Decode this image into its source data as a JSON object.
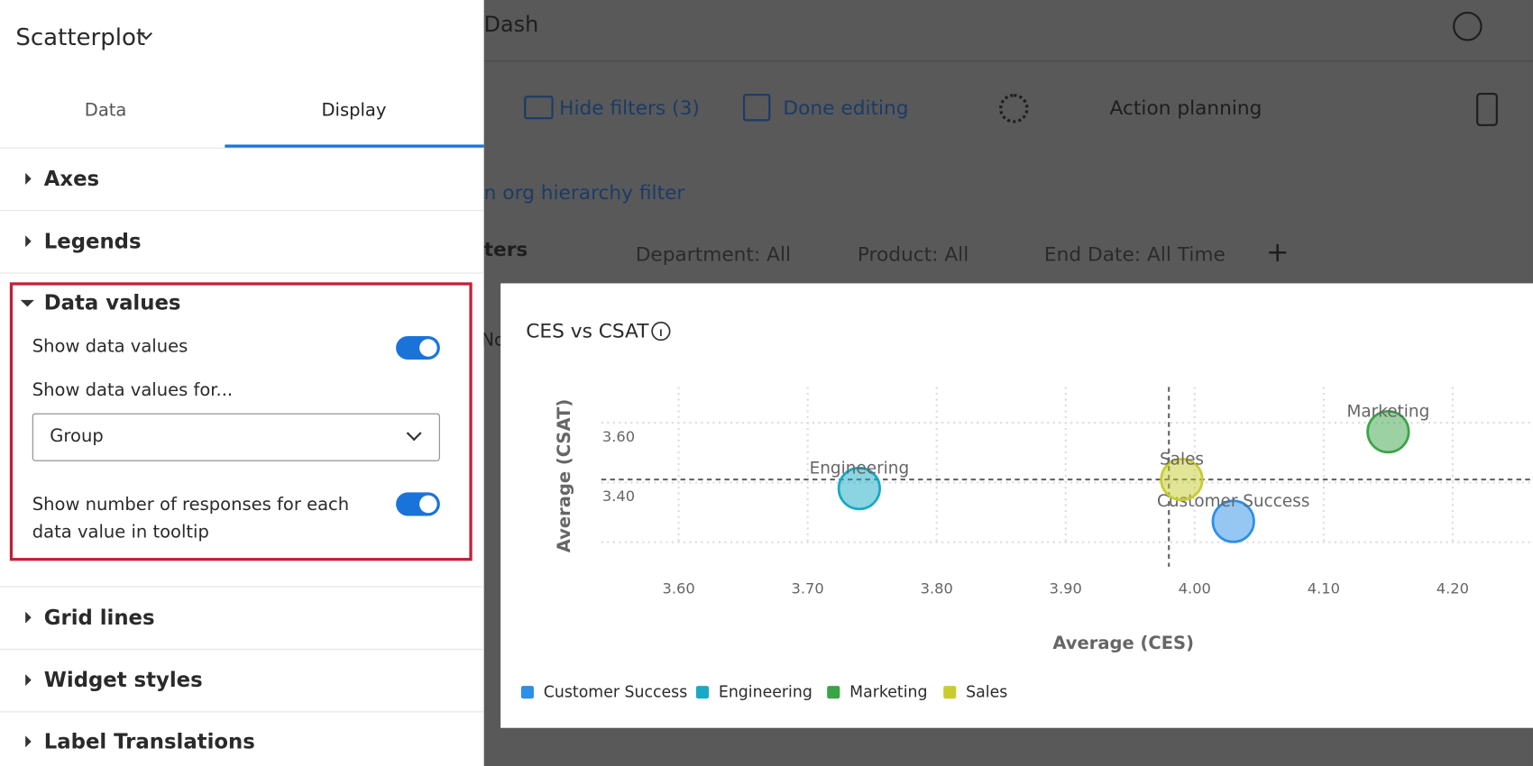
{
  "panel": {
    "title": "Scatterplot",
    "tabs": [
      "Data",
      "Display"
    ],
    "sections": [
      "Axes",
      "Legends",
      "Data values",
      "Grid lines",
      "Widget styles",
      "Label Translations"
    ],
    "data_values": {
      "show_data_values": "Show data values",
      "show_for_label": "Show data values for...",
      "show_for_value": "Group",
      "show_responses": "Show number of responses for each data value in tooltip"
    }
  },
  "dashboard": {
    "title": "Dash",
    "toolbar": [
      "Hide filters (3)",
      "Done editing",
      "Action planning"
    ],
    "org_filter": "n org hierarchy filter",
    "filters_label": "ters",
    "tab_fragment": "No",
    "filters": [
      "Department: All",
      "Product: All",
      "End Date: All Time"
    ]
  },
  "chart_data": {
    "type": "scatter",
    "title": "CES vs CSAT",
    "x_label": "Average (CES)",
    "y_label": "Average (CSAT)",
    "xlim": [
      3.54,
      4.26
    ],
    "ylim": [
      3.2,
      3.72
    ],
    "xticks": [
      {
        "value": 3.6,
        "label": "3.60"
      },
      {
        "value": 3.7,
        "label": "3.70"
      },
      {
        "value": 3.8,
        "label": "3.80"
      },
      {
        "value": 3.9,
        "label": "3.90"
      },
      {
        "value": 4.0,
        "label": "4.00"
      },
      {
        "value": 4.1,
        "label": "4.10"
      },
      {
        "value": 4.2,
        "label": "4.20"
      }
    ],
    "yticks": [
      {
        "value": 3.4,
        "label": "3.40"
      },
      {
        "value": 3.6,
        "label": "3.60"
      }
    ],
    "grid": true,
    "reference_lines": {
      "x": 3.98,
      "y": 3.41
    },
    "series": [
      {
        "name": "Customer Success",
        "color": "#2d8fe6",
        "x": [
          4.03
        ],
        "y": [
          3.27
        ]
      },
      {
        "name": "Engineering",
        "color": "#18a9c4",
        "x": [
          3.74
        ],
        "y": [
          3.38
        ]
      },
      {
        "name": "Marketing",
        "color": "#3aa447",
        "x": [
          4.15
        ],
        "y": [
          3.57
        ]
      },
      {
        "name": "Sales",
        "color": "#c8cc2e",
        "x": [
          3.99
        ],
        "y": [
          3.41
        ]
      }
    ]
  }
}
